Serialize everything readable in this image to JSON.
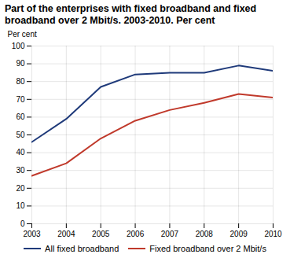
{
  "chart_data": {
    "type": "line",
    "title": "Part of the enterprises with fixed broadband and fixed broadband over 2 Mbit/s. 2003-2010. Per cent",
    "ylabel": "Per cent",
    "x": [
      2003,
      2004,
      2005,
      2006,
      2007,
      2008,
      2009,
      2010
    ],
    "series": [
      {
        "name": "All fixed broadband",
        "color": "#1f3a7a",
        "values": [
          46,
          59,
          77,
          84,
          85,
          85,
          89,
          86
        ]
      },
      {
        "name": "Fixed broadband over 2 Mbit/s",
        "color": "#c0392b",
        "values": [
          27,
          34,
          48,
          58,
          64,
          68,
          73,
          71
        ]
      }
    ],
    "xlim": [
      2003,
      2010
    ],
    "xticks": [
      2003,
      2004,
      2005,
      2006,
      2007,
      2008,
      2009,
      2010
    ],
    "ylim": [
      0,
      100
    ],
    "yticks": [
      0,
      10,
      20,
      30,
      40,
      50,
      60,
      70,
      80,
      90,
      100
    ],
    "grid": true,
    "legend": "bottom"
  }
}
